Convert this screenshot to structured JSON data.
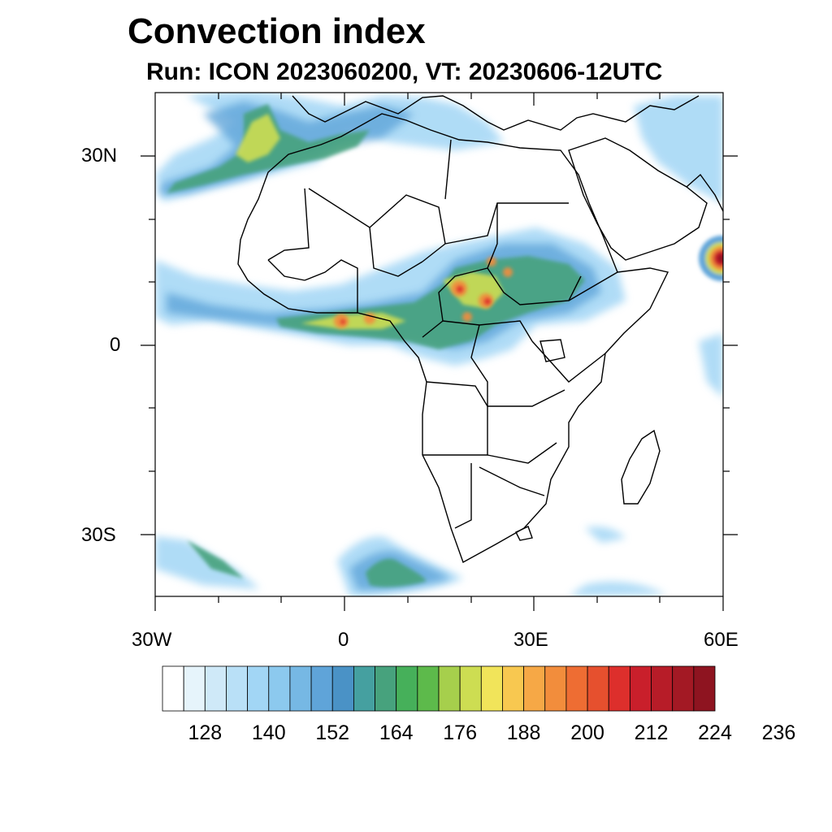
{
  "title": "Convection index",
  "subtitle": "Run: ICON 2023060200,  VT: 20230606-12UTC",
  "map": {
    "lon_range": [
      -30,
      60
    ],
    "lat_range": [
      -40,
      40
    ],
    "lon_tick_labels": [
      "30W",
      "0",
      "30E",
      "60E"
    ],
    "lat_tick_labels": [
      "30N",
      "0",
      "30S"
    ],
    "coastline_color": "#000000",
    "background": "#ffffff"
  },
  "colorbar": {
    "labels": [
      "128",
      "140",
      "152",
      "164",
      "176",
      "188",
      "200",
      "212",
      "224",
      "236"
    ],
    "colors": [
      "#ffffff",
      "#e6f4fb",
      "#cfe9f8",
      "#b9e0f7",
      "#a2d6f5",
      "#8cc9ee",
      "#76b8e4",
      "#5fa4d9",
      "#4a92c6",
      "#45a0a0",
      "#47a27d",
      "#46b05a",
      "#5dba4b",
      "#a6cf4c",
      "#cddd52",
      "#f1e45a",
      "#f8c850",
      "#f6a846",
      "#f28d3c",
      "#ee6d33",
      "#e6502e",
      "#dd2f2c",
      "#c91f2b",
      "#b71c28",
      "#a31924",
      "#8e1420"
    ]
  }
}
